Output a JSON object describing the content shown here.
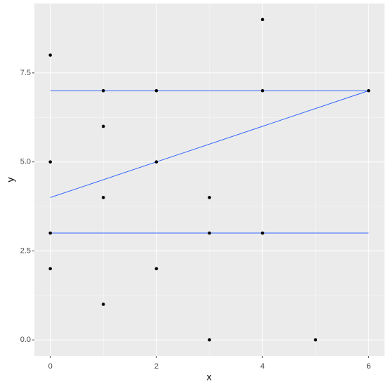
{
  "chart_data": {
    "type": "scatter",
    "x_label": "x",
    "y_label": "y",
    "xlim": [
      -0.3,
      6.3
    ],
    "ylim": [
      -0.45,
      9.45
    ],
    "xticks": [
      0,
      2,
      4,
      6
    ],
    "yticks": [
      {
        "value": 0,
        "label": "0.0"
      },
      {
        "value": 2.5,
        "label": "2.5"
      },
      {
        "value": 5,
        "label": "5.0"
      },
      {
        "value": 7.5,
        "label": "7.5"
      }
    ],
    "grid": true,
    "points": {
      "color": "#000000",
      "x": [
        0,
        1,
        2,
        4,
        4,
        6,
        1,
        0,
        2,
        1,
        3,
        0,
        3,
        4,
        0,
        2,
        1,
        3,
        5
      ],
      "y": [
        8,
        7,
        7,
        9,
        7,
        7,
        6,
        5,
        5,
        4,
        4,
        3,
        3,
        3,
        2,
        2,
        1,
        0,
        0
      ]
    },
    "lines": [
      {
        "color": "#3366FF",
        "x": [
          0,
          6
        ],
        "y": [
          7,
          7
        ]
      },
      {
        "color": "#3366FF",
        "x": [
          0,
          6
        ],
        "y": [
          4,
          7
        ]
      },
      {
        "color": "#3366FF",
        "x": [
          0,
          6
        ],
        "y": [
          3,
          3
        ]
      }
    ]
  }
}
